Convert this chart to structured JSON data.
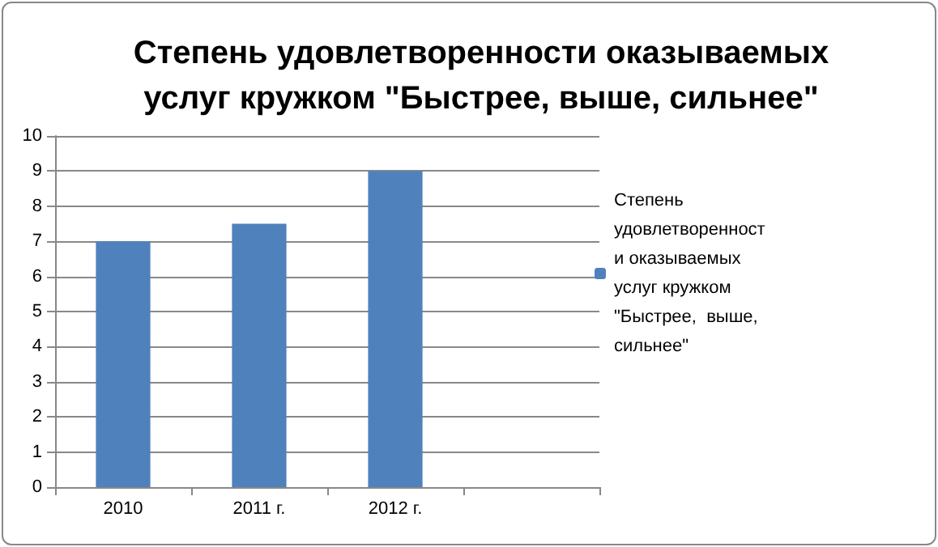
{
  "chart_data": {
    "type": "bar",
    "title": "Степень удовлетворенности оказываемых\nуслуг кружком \"Быстрее, выше, сильнее\"",
    "categories": [
      "2010",
      "2011 г.",
      "2012 г.",
      null
    ],
    "series": [
      {
        "name": "Степень  удовлетворенности оказываемых услуг кружком \"Быстрее,  выше,  сильнее\"",
        "color": "#4f81bd",
        "values": [
          7,
          7.5,
          9,
          null
        ]
      }
    ],
    "ylim": [
      0,
      10
    ],
    "yticks": [
      0,
      1,
      2,
      3,
      4,
      5,
      6,
      7,
      8,
      9,
      10
    ],
    "grid": "y",
    "legend": "right"
  }
}
